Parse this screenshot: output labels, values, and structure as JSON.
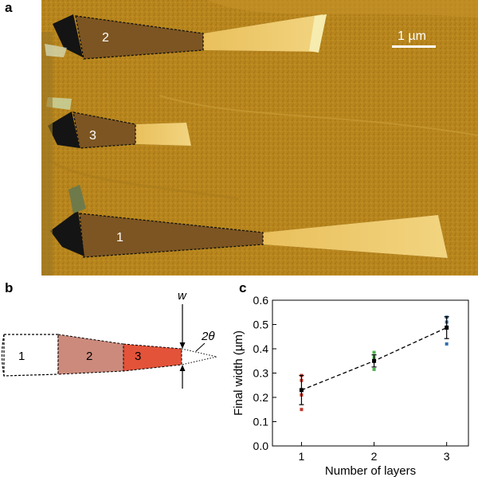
{
  "panel_a": {
    "letter": "a",
    "scale_bar_label": "1 µm",
    "region_labels": [
      "2",
      "3",
      "1"
    ]
  },
  "panel_b": {
    "letter": "b",
    "segment_labels": [
      "1",
      "2",
      "3"
    ],
    "width_label": "w",
    "angle_label": "2θ"
  },
  "panel_c": {
    "letter": "c"
  },
  "chart_data": {
    "type": "scatter",
    "xlabel": "Number of layers",
    "ylabel": "Final width (µm)",
    "xlim": [
      0.6,
      3.3
    ],
    "ylim": [
      0,
      0.6
    ],
    "xticks": [
      1,
      2,
      3
    ],
    "yticks": [
      0,
      0.1,
      0.2,
      0.3,
      0.4,
      0.5,
      0.6
    ],
    "ytick_labels": [
      "0.0",
      "0.1",
      "0.2",
      "0.3",
      "0.4",
      "0.5",
      "0.6"
    ],
    "grid": false,
    "individual_points": [
      {
        "x": 1,
        "values": [
          0.29,
          0.27,
          0.23,
          0.21,
          0.15
        ],
        "color": "#c0392b"
      },
      {
        "x": 2,
        "values": [
          0.385,
          0.365,
          0.35,
          0.315
        ],
        "color": "#4cb34c"
      },
      {
        "x": 3,
        "values": [
          0.53,
          0.51,
          0.49,
          0.42
        ],
        "color": "#2e6fb0"
      }
    ],
    "series": [
      {
        "x": [
          1,
          2,
          3
        ],
        "mean": [
          0.23,
          0.35,
          0.487
        ],
        "err": [
          0.06,
          0.025,
          0.045
        ]
      }
    ],
    "fit_line": {
      "style": "dashed",
      "color": "#000000"
    }
  }
}
